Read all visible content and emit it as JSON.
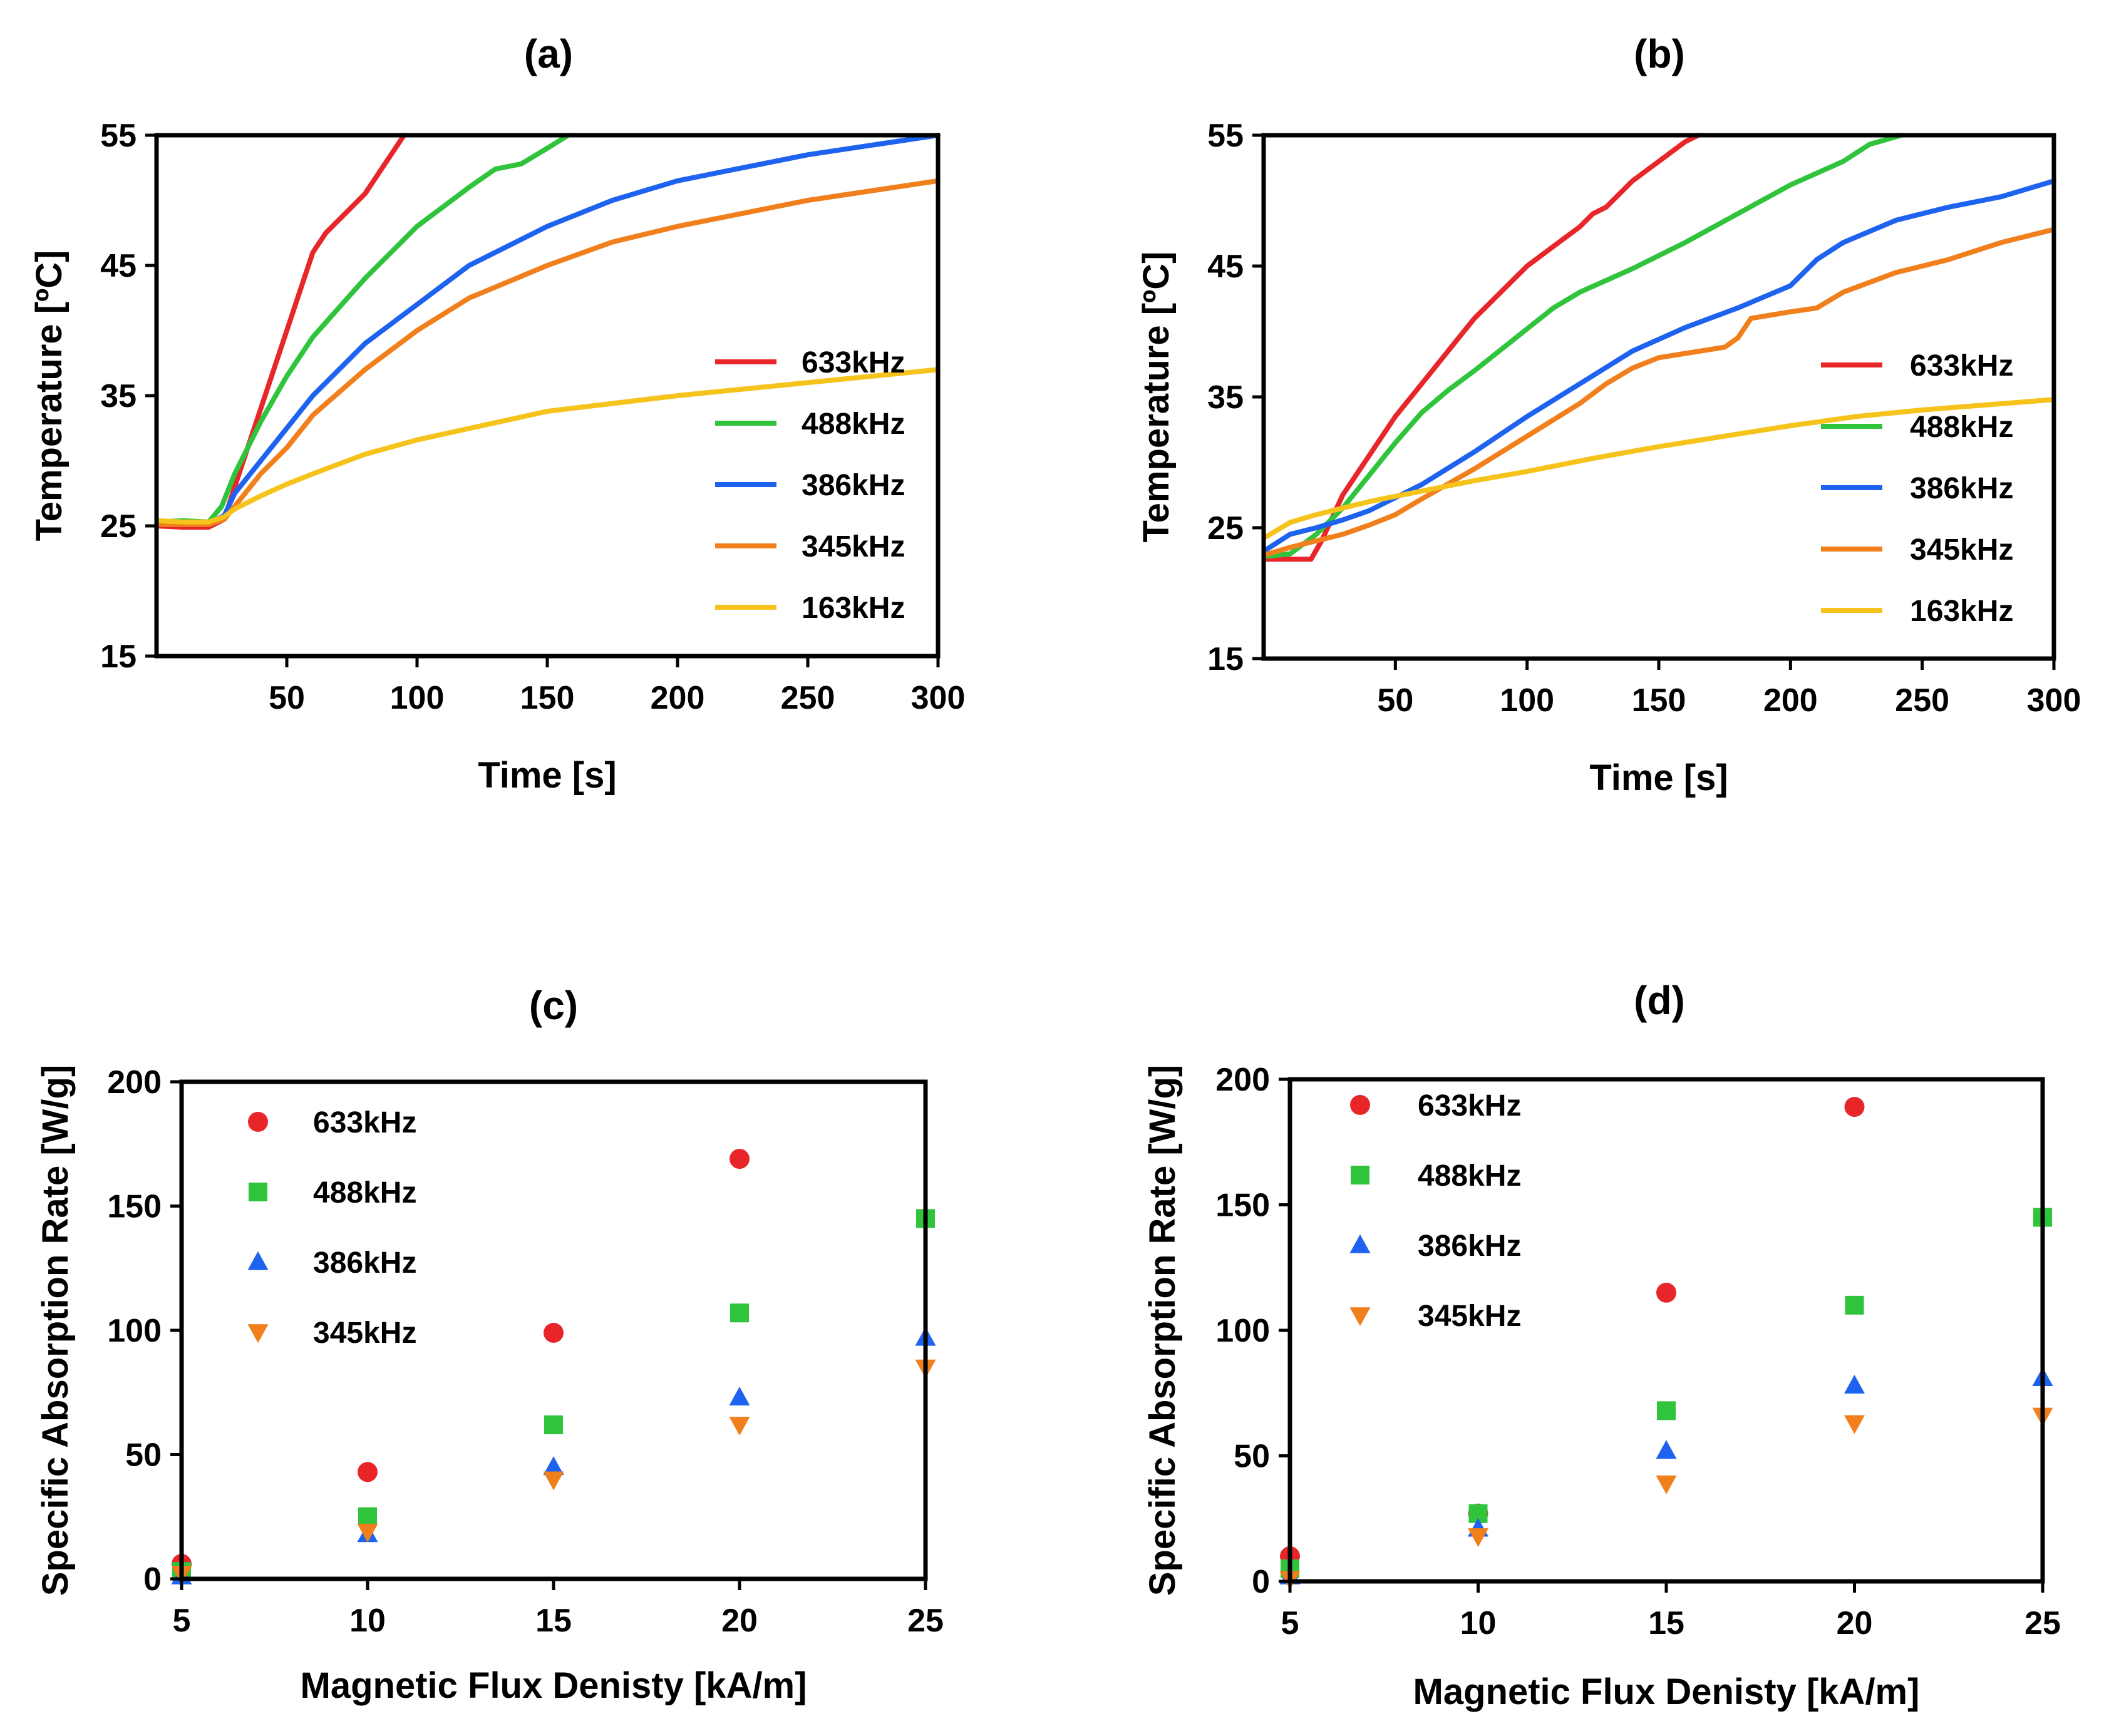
{
  "figure": {
    "panels": [
      "a",
      "b",
      "c",
      "d"
    ]
  },
  "colors": {
    "633kHz": "#e8262a",
    "488kHz": "#2fc43c",
    "386kHz": "#1e63ef",
    "345kHz": "#f07f1c",
    "163kHz": "#f5c31c"
  },
  "chart_data": [
    {
      "id": "a",
      "type": "line",
      "title": "(a)",
      "xlabel": "Time [s]",
      "ylabel": "Temperature [ºC]",
      "xlim": [
        0,
        300
      ],
      "ylim": [
        15,
        55
      ],
      "xticks": [
        50,
        100,
        150,
        200,
        250,
        300
      ],
      "yticks": [
        15,
        25,
        35,
        45,
        55
      ],
      "grid": false,
      "legend_position": "right",
      "series": [
        {
          "name": "633kHz",
          "x": [
            0,
            10,
            20,
            26,
            30,
            40,
            50,
            60,
            65,
            70,
            80,
            90,
            95
          ],
          "y": [
            25,
            24.9,
            24.9,
            25.5,
            28,
            34,
            40,
            46,
            47.5,
            48.5,
            50.5,
            53.5,
            55
          ]
        },
        {
          "name": "488kHz",
          "x": [
            0,
            10,
            20,
            25,
            30,
            40,
            50,
            60,
            80,
            100,
            120,
            130,
            140,
            150,
            158
          ],
          "y": [
            25.3,
            25.4,
            25.3,
            26.5,
            29,
            33,
            36.5,
            39.5,
            44,
            48,
            51,
            52.4,
            52.8,
            54,
            55
          ]
        },
        {
          "name": "386kHz",
          "x": [
            0,
            10,
            20,
            26,
            30,
            40,
            50,
            60,
            70,
            80,
            100,
            120,
            150,
            175,
            200,
            250,
            300
          ],
          "y": [
            25.2,
            25.1,
            25.2,
            25.8,
            27.5,
            30,
            32.5,
            35,
            37,
            39,
            42,
            45,
            48,
            50,
            51.5,
            53.5,
            55
          ]
        },
        {
          "name": "345kHz",
          "x": [
            0,
            10,
            20,
            26,
            30,
            40,
            50,
            60,
            80,
            100,
            120,
            150,
            175,
            200,
            250,
            300
          ],
          "y": [
            25.1,
            25.1,
            25.1,
            25.5,
            26.5,
            29,
            31,
            33.5,
            37,
            40,
            42.5,
            45,
            46.8,
            48,
            50,
            51.5
          ]
        },
        {
          "name": "163kHz",
          "x": [
            0,
            10,
            20,
            26,
            30,
            40,
            50,
            60,
            80,
            100,
            125,
            150,
            175,
            200,
            250,
            300
          ],
          "y": [
            25.4,
            25.3,
            25.3,
            25.7,
            26.3,
            27.3,
            28.2,
            29,
            30.5,
            31.6,
            32.7,
            33.8,
            34.4,
            35,
            36,
            37
          ]
        }
      ]
    },
    {
      "id": "b",
      "type": "line",
      "title": "(b)",
      "xlabel": "Time [s]",
      "ylabel": "Temperature [ºC]",
      "xlim": [
        0,
        300
      ],
      "ylim": [
        15,
        55
      ],
      "xticks": [
        50,
        100,
        150,
        200,
        250,
        300
      ],
      "yticks": [
        15,
        25,
        35,
        45,
        55
      ],
      "grid": false,
      "legend_position": "right",
      "series": [
        {
          "name": "633kHz",
          "x": [
            0,
            10,
            18,
            22,
            30,
            40,
            50,
            60,
            70,
            80,
            90,
            100,
            110,
            120,
            125,
            130,
            140,
            150,
            160,
            165
          ],
          "y": [
            22.6,
            22.6,
            22.6,
            24,
            27.5,
            30.5,
            33.5,
            36,
            38.5,
            41,
            43,
            45,
            46.5,
            48,
            49,
            49.5,
            51.5,
            53,
            54.5,
            55
          ]
        },
        {
          "name": "488kHz",
          "x": [
            0,
            10,
            20,
            30,
            40,
            50,
            60,
            70,
            80,
            90,
            100,
            110,
            120,
            140,
            160,
            180,
            200,
            220,
            230,
            242
          ],
          "y": [
            22.8,
            23,
            24.5,
            26.5,
            29,
            31.5,
            33.8,
            35.5,
            37,
            38.6,
            40.2,
            41.8,
            43,
            44.8,
            46.8,
            49,
            51.2,
            53,
            54.3,
            55
          ]
        },
        {
          "name": "386kHz",
          "x": [
            0,
            10,
            20,
            30,
            40,
            50,
            60,
            80,
            100,
            120,
            140,
            160,
            180,
            200,
            210,
            220,
            240,
            260,
            280,
            300
          ],
          "y": [
            23.2,
            24.5,
            25,
            25.6,
            26.3,
            27.3,
            28.3,
            30.8,
            33.5,
            36,
            38.5,
            40.3,
            41.8,
            43.5,
            45.5,
            46.8,
            48.5,
            49.5,
            50.3,
            51.5
          ]
        },
        {
          "name": "345kHz",
          "x": [
            0,
            10,
            20,
            30,
            40,
            50,
            60,
            80,
            100,
            120,
            130,
            140,
            150,
            175,
            180,
            185,
            200,
            210,
            220,
            240,
            260,
            280,
            300
          ],
          "y": [
            22.9,
            23.5,
            24,
            24.5,
            25.2,
            26,
            27.2,
            29.5,
            32,
            34.5,
            36,
            37.2,
            38,
            38.8,
            39.5,
            41,
            41.5,
            41.8,
            43,
            44.5,
            45.5,
            46.8,
            47.8
          ]
        },
        {
          "name": "163kHz",
          "x": [
            0,
            10,
            20,
            30,
            40,
            50,
            60,
            80,
            100,
            125,
            150,
            175,
            200,
            225,
            250,
            275,
            300
          ],
          "y": [
            24.2,
            25.4,
            26,
            26.5,
            27,
            27.4,
            27.8,
            28.6,
            29.3,
            30.3,
            31.2,
            32,
            32.8,
            33.5,
            34,
            34.4,
            34.8
          ]
        }
      ]
    },
    {
      "id": "c",
      "type": "scatter",
      "title": "(c)",
      "xlabel": "Magnetic Flux Denisty [kA/m]",
      "ylabel": "Specific Absorption Rate [W/g]",
      "xlim": [
        5,
        25
      ],
      "ylim": [
        0,
        200
      ],
      "xticks": [
        5,
        10,
        15,
        20,
        25
      ],
      "yticks": [
        0,
        50,
        100,
        150,
        200
      ],
      "grid": false,
      "legend_position": "top-left",
      "series": [
        {
          "name": "633kHz",
          "marker": "circle",
          "x": [
            5,
            10,
            15,
            20
          ],
          "y": [
            6,
            43,
            99,
            169
          ]
        },
        {
          "name": "488kHz",
          "marker": "square",
          "x": [
            5,
            10,
            15,
            20,
            25
          ],
          "y": [
            3,
            25,
            62,
            107,
            145
          ]
        },
        {
          "name": "386kHz",
          "marker": "triangle-up",
          "x": [
            5,
            10,
            15,
            20,
            25
          ],
          "y": [
            1,
            18,
            45,
            73,
            97
          ]
        },
        {
          "name": "345kHz",
          "marker": "triangle-down",
          "x": [
            5,
            10,
            15,
            20,
            25
          ],
          "y": [
            2,
            19,
            40,
            62,
            85
          ]
        }
      ]
    },
    {
      "id": "d",
      "type": "scatter",
      "title": "(d)",
      "xlabel": "Magnetic Flux Denisty [kA/m]",
      "ylabel": "Specific Absorption Rate [W/g]",
      "xlim": [
        5,
        25
      ],
      "ylim": [
        0,
        200
      ],
      "xticks": [
        5,
        10,
        15,
        20,
        25
      ],
      "yticks": [
        0,
        50,
        100,
        150,
        200
      ],
      "grid": false,
      "legend_position": "top-left",
      "series": [
        {
          "name": "633kHz",
          "marker": "circle",
          "x": [
            5,
            10,
            15,
            20
          ],
          "y": [
            10,
            27,
            115,
            189
          ]
        },
        {
          "name": "488kHz",
          "marker": "square",
          "x": [
            5,
            10,
            15,
            20,
            25
          ],
          "y": [
            5,
            27,
            68,
            110,
            145
          ]
        },
        {
          "name": "386kHz",
          "marker": "triangle-up",
          "x": [
            5,
            10,
            15,
            20,
            25
          ],
          "y": [
            2,
            21,
            52,
            78,
            81
          ]
        },
        {
          "name": "345kHz",
          "marker": "triangle-down",
          "x": [
            5,
            10,
            15,
            20,
            25
          ],
          "y": [
            1,
            18,
            39,
            63,
            66
          ]
        }
      ]
    }
  ]
}
